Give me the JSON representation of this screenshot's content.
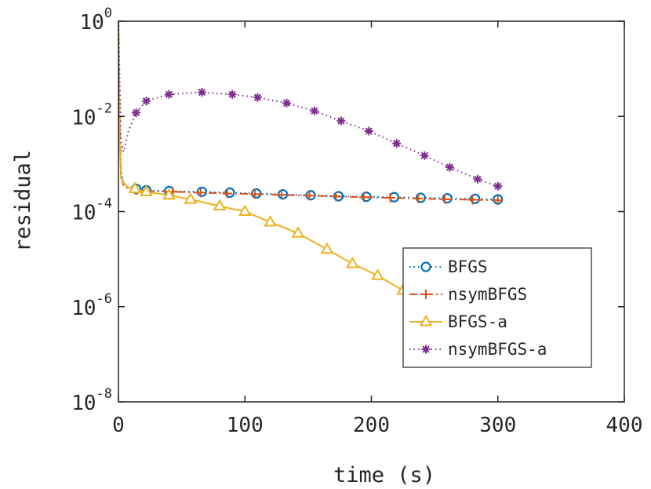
{
  "chart_data": {
    "type": "line",
    "title": "",
    "xlabel": "time (s)",
    "ylabel": "residual",
    "x_scale": "linear",
    "y_scale": "log",
    "xlim": [
      0,
      400
    ],
    "ylim": [
      1e-08,
      1
    ],
    "x_ticks": [
      0,
      100,
      200,
      300,
      400
    ],
    "x_tick_labels": [
      "0",
      "100",
      "200",
      "300",
      "400"
    ],
    "y_ticks": [
      1e-08,
      1e-06,
      0.0001,
      0.01,
      1
    ],
    "y_tick_labels": [
      {
        "base": "10",
        "exp": "-8"
      },
      {
        "base": "10",
        "exp": "-6"
      },
      {
        "base": "10",
        "exp": "-4"
      },
      {
        "base": "10",
        "exp": "-2"
      },
      {
        "base": "10",
        "exp": "0"
      }
    ],
    "grid": false,
    "legend_position": "bottom-right",
    "series": [
      {
        "name": "BFGS",
        "color": "#0072BD",
        "line_style": "dotted",
        "marker": "circle",
        "x": [
          0,
          1,
          2,
          4,
          8,
          14,
          22,
          40,
          66,
          88,
          109,
          130,
          152,
          174,
          196,
          218,
          239,
          260,
          282,
          300
        ],
        "y": [
          1,
          0.02,
          0.0008,
          0.0004,
          0.00032,
          0.0003,
          0.00028,
          0.00027,
          0.00026,
          0.00025,
          0.00024,
          0.00023,
          0.00022,
          0.00021,
          0.000205,
          0.0002,
          0.000195,
          0.00019,
          0.000185,
          0.00018
        ]
      },
      {
        "name": "nsymBFGS",
        "color": "#D95319",
        "line_style": "dashdot",
        "marker": "plus",
        "x": [
          0,
          1,
          2,
          4,
          8,
          14,
          22,
          43,
          65,
          86,
          108,
          129,
          151,
          172,
          194,
          215,
          237,
          258,
          280,
          300
        ],
        "y": [
          1,
          0.01,
          0.0006,
          0.00035,
          0.0003,
          0.00028,
          0.00027,
          0.00026,
          0.00025,
          0.00024,
          0.000232,
          0.000224,
          0.000216,
          0.000208,
          0.0002,
          0.000194,
          0.000188,
          0.000182,
          0.000177,
          0.000173
        ]
      },
      {
        "name": "BFGS-a",
        "color": "#EDB120",
        "line_style": "solid",
        "marker": "triangle",
        "x": [
          0,
          1,
          2,
          4,
          8,
          13,
          22,
          40,
          57,
          80,
          100,
          120,
          142,
          165,
          185,
          205,
          225,
          240
        ],
        "y": [
          1,
          0.003,
          0.0005,
          0.0004,
          0.00032,
          0.0003,
          0.00026,
          0.00022,
          0.00018,
          0.00013,
          0.0001,
          6e-05,
          3.5e-05,
          1.6e-05,
          8e-06,
          4.5e-06,
          2.2e-06,
          1.35e-06
        ]
      },
      {
        "name": "nsymBFGS-a",
        "color": "#7E2F8E",
        "line_style": "dotted",
        "marker": "asterisk",
        "x": [
          0,
          1,
          2,
          4,
          8,
          14,
          22,
          40,
          66,
          90,
          110,
          133,
          155,
          176,
          198,
          220,
          242,
          262,
          284,
          300
        ],
        "y": [
          1,
          0.05,
          0.003,
          0.0018,
          0.005,
          0.012,
          0.021,
          0.029,
          0.032,
          0.029,
          0.025,
          0.019,
          0.013,
          0.008,
          0.0049,
          0.0027,
          0.0015,
          0.00085,
          0.00048,
          0.00034
        ]
      }
    ]
  }
}
